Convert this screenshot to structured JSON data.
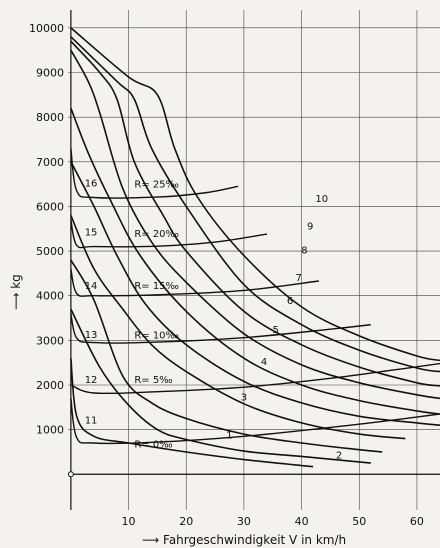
{
  "chart_data": {
    "type": "line",
    "title": "",
    "xlabel": "Fahrgeschwindigkeit V in km/h",
    "ylabel": "kg",
    "xlim": [
      -0.5,
      64
    ],
    "ylim": [
      -800,
      10400
    ],
    "x_ticks": [
      {
        "value": 10,
        "label": "10"
      },
      {
        "value": 20,
        "label": "20"
      },
      {
        "value": 30,
        "label": "30"
      },
      {
        "value": 40,
        "label": "40"
      },
      {
        "value": 50,
        "label": "50"
      },
      {
        "value": 60,
        "label": "60"
      }
    ],
    "y_ticks": [
      {
        "value": 1000,
        "label": "1000"
      },
      {
        "value": 2000,
        "label": "2000"
      },
      {
        "value": 3000,
        "label": "3000"
      },
      {
        "value": 4000,
        "label": "4000"
      },
      {
        "value": 5000,
        "label": "5000"
      },
      {
        "value": 6000,
        "label": "6000"
      },
      {
        "value": 7000,
        "label": "7000"
      },
      {
        "value": 8000,
        "label": "8000"
      },
      {
        "value": 9000,
        "label": "9000"
      },
      {
        "value": 10000,
        "label": "10000"
      }
    ],
    "grid": true,
    "curves": [
      {
        "label": "1",
        "label_at": [
          27.5,
          800
        ],
        "points": [
          [
            0,
            2600
          ],
          [
            1,
            1300
          ],
          [
            4,
            850
          ],
          [
            10,
            700
          ],
          [
            20,
            500
          ],
          [
            30,
            330
          ],
          [
            42,
            170
          ]
        ]
      },
      {
        "label": "2",
        "label_at": [
          46.5,
          350
        ],
        "points": [
          [
            0,
            3700
          ],
          [
            5,
            2400
          ],
          [
            10,
            1550
          ],
          [
            15,
            1000
          ],
          [
            20,
            780
          ],
          [
            30,
            520
          ],
          [
            40,
            400
          ],
          [
            52,
            250
          ]
        ]
      },
      {
        "label": "3",
        "label_at": [
          30,
          1650
        ],
        "points": [
          [
            0,
            4800
          ],
          [
            4,
            3900
          ],
          [
            9,
            2200
          ],
          [
            14,
            1600
          ],
          [
            20,
            1250
          ],
          [
            30,
            900
          ],
          [
            40,
            700
          ],
          [
            50,
            550
          ],
          [
            54,
            500
          ]
        ]
      },
      {
        "label": "4",
        "label_at": [
          33.5,
          2450
        ],
        "points": [
          [
            0,
            5800
          ],
          [
            4,
            4600
          ],
          [
            9,
            3700
          ],
          [
            14,
            2900
          ],
          [
            20,
            2300
          ],
          [
            30,
            1580
          ],
          [
            40,
            1150
          ],
          [
            50,
            900
          ],
          [
            58,
            800
          ]
        ]
      },
      {
        "label": "5",
        "label_at": [
          35.5,
          3170
        ],
        "points": [
          [
            0,
            7000
          ],
          [
            4,
            6000
          ],
          [
            8,
            4900
          ],
          [
            13,
            3800
          ],
          [
            20,
            2900
          ],
          [
            30,
            2080
          ],
          [
            40,
            1600
          ],
          [
            50,
            1300
          ],
          [
            60,
            1150
          ],
          [
            64,
            1100
          ]
        ]
      },
      {
        "label": "6",
        "label_at": [
          38,
          3820
        ],
        "points": [
          [
            0,
            8200
          ],
          [
            3,
            7200
          ],
          [
            7,
            6100
          ],
          [
            12,
            4900
          ],
          [
            20,
            3650
          ],
          [
            30,
            2600
          ],
          [
            40,
            2000
          ],
          [
            50,
            1650
          ],
          [
            60,
            1420
          ],
          [
            64,
            1350
          ]
        ]
      },
      {
        "label": "7",
        "label_at": [
          39.5,
          4330
        ],
        "points": [
          [
            0,
            9500
          ],
          [
            3,
            8800
          ],
          [
            5,
            8100
          ],
          [
            9,
            6400
          ],
          [
            14,
            5200
          ],
          [
            20,
            4300
          ],
          [
            30,
            3150
          ],
          [
            40,
            2450
          ],
          [
            50,
            2050
          ],
          [
            60,
            1780
          ],
          [
            64,
            1700
          ]
        ]
      },
      {
        "label": "8",
        "label_at": [
          40.5,
          4950
        ],
        "points": [
          [
            0,
            9700
          ],
          [
            5,
            9000
          ],
          [
            8,
            8400
          ],
          [
            11,
            7000
          ],
          [
            16,
            5800
          ],
          [
            20,
            5000
          ],
          [
            30,
            3650
          ],
          [
            40,
            2900
          ],
          [
            50,
            2400
          ],
          [
            60,
            2050
          ],
          [
            64,
            1980
          ]
        ]
      },
      {
        "label": "9",
        "label_at": [
          41.5,
          5480
        ],
        "points": [
          [
            0,
            9800
          ],
          [
            8,
            8800
          ],
          [
            11,
            8400
          ],
          [
            14,
            7300
          ],
          [
            20,
            6000
          ],
          [
            30,
            4250
          ],
          [
            40,
            3350
          ],
          [
            50,
            2780
          ],
          [
            60,
            2380
          ],
          [
            64,
            2300
          ]
        ]
      },
      {
        "label": "10",
        "label_at": [
          43.5,
          6100
        ],
        "points": [
          [
            0,
            10000
          ],
          [
            10,
            8900
          ],
          [
            15,
            8500
          ],
          [
            18,
            7300
          ],
          [
            22,
            6200
          ],
          [
            30,
            4900
          ],
          [
            40,
            3750
          ],
          [
            50,
            3100
          ],
          [
            60,
            2650
          ],
          [
            64,
            2550
          ]
        ]
      }
    ],
    "resistance_lines": [
      {
        "label": "11",
        "grade": "R= 0‰",
        "label_at": [
          3.5,
          1140
        ],
        "grade_at": [
          11,
          600
        ],
        "points": [
          [
            0,
            1700
          ],
          [
            1,
            820
          ],
          [
            4,
            700
          ],
          [
            15,
            720
          ],
          [
            30,
            850
          ],
          [
            45,
            1050
          ],
          [
            55,
            1200
          ],
          [
            64,
            1350
          ]
        ]
      },
      {
        "label": "12",
        "grade": "R= 5‰",
        "label_at": [
          3.5,
          2050
        ],
        "grade_at": [
          11,
          2040
        ],
        "points": [
          [
            0,
            2000
          ],
          [
            4,
            1820
          ],
          [
            15,
            1850
          ],
          [
            30,
            1950
          ],
          [
            45,
            2150
          ],
          [
            55,
            2320
          ],
          [
            64,
            2480
          ]
        ]
      },
      {
        "label": "13",
        "grade": "R= 10‰",
        "label_at": [
          3.5,
          3050
        ],
        "grade_at": [
          11,
          3040
        ],
        "points": [
          [
            0,
            3600
          ],
          [
            1,
            3050
          ],
          [
            4,
            2950
          ],
          [
            15,
            2960
          ],
          [
            30,
            3060
          ],
          [
            45,
            3250
          ],
          [
            52,
            3350
          ]
        ]
      },
      {
        "label": "14",
        "grade": "R= 15‰",
        "label_at": [
          3.5,
          4150
        ],
        "grade_at": [
          11,
          4150
        ],
        "points": [
          [
            0,
            4600
          ],
          [
            1,
            4050
          ],
          [
            4,
            4000
          ],
          [
            15,
            4020
          ],
          [
            30,
            4120
          ],
          [
            43,
            4330
          ]
        ]
      },
      {
        "label": "15",
        "grade": "R= 20‰",
        "label_at": [
          3.5,
          5350
        ],
        "grade_at": [
          11,
          5320
        ],
        "points": [
          [
            0,
            5700
          ],
          [
            1,
            5130
          ],
          [
            4,
            5100
          ],
          [
            15,
            5110
          ],
          [
            25,
            5200
          ],
          [
            34,
            5380
          ]
        ]
      },
      {
        "label": "16",
        "grade": "R= 25‰",
        "label_at": [
          3.5,
          6450
        ],
        "grade_at": [
          11,
          6420
        ],
        "points": [
          [
            0,
            7300
          ],
          [
            1,
            6350
          ],
          [
            4,
            6200
          ],
          [
            15,
            6210
          ],
          [
            23,
            6300
          ],
          [
            29,
            6450
          ]
        ]
      }
    ]
  }
}
